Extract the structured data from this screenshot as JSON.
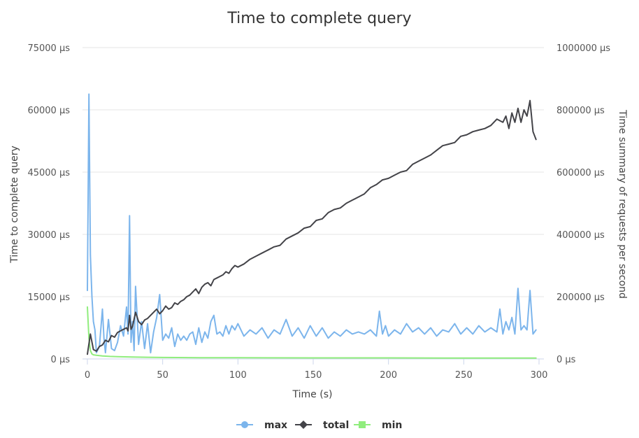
{
  "chart_data": {
    "type": "line",
    "title": "Time to complete query",
    "xlabel": "Time (s)",
    "ylabel_left": "Time to complete query",
    "ylabel_right": "Time summary of requests per second",
    "x_ticks": [
      "0",
      "50",
      "100",
      "150",
      "200",
      "250",
      "300"
    ],
    "y_left_ticks": [
      "0 µs",
      "15000 µs",
      "30000 µs",
      "45000 µs",
      "60000 µs",
      "75000 µs"
    ],
    "y_right_ticks": [
      "0 µs",
      "200000 µs",
      "400000 µs",
      "600000 µs",
      "800000 µs",
      "1000000 µs"
    ],
    "xlim": [
      0,
      300
    ],
    "ylim_left": [
      0,
      75000
    ],
    "ylim_right": [
      0,
      1000000
    ],
    "grid": true,
    "legend_position": "bottom-center",
    "series": [
      {
        "name": "max",
        "axis": "left",
        "color": "#7cb5ec",
        "marker": "circle",
        "x": [
          0,
          1,
          2,
          3,
          4,
          5,
          6,
          8,
          10,
          11,
          12,
          14,
          16,
          18,
          20,
          22,
          24,
          26,
          27,
          28,
          29,
          30,
          31,
          32,
          34,
          36,
          38,
          40,
          42,
          44,
          46,
          48,
          50,
          52,
          54,
          56,
          58,
          60,
          62,
          64,
          66,
          68,
          70,
          72,
          74,
          76,
          78,
          80,
          82,
          84,
          86,
          88,
          90,
          92,
          94,
          96,
          98,
          100,
          104,
          108,
          112,
          116,
          120,
          124,
          128,
          132,
          136,
          140,
          144,
          148,
          152,
          156,
          160,
          164,
          168,
          172,
          176,
          180,
          184,
          188,
          192,
          194,
          196,
          198,
          200,
          204,
          208,
          212,
          216,
          220,
          224,
          228,
          232,
          236,
          240,
          244,
          248,
          252,
          256,
          260,
          264,
          268,
          272,
          274,
          276,
          278,
          280,
          282,
          284,
          286,
          288,
          290,
          292,
          294,
          296,
          298
        ],
        "y": [
          16500,
          63800,
          25000,
          15000,
          9000,
          7000,
          1500,
          3000,
          12000,
          5000,
          1500,
          9500,
          2500,
          2000,
          4000,
          8000,
          5500,
          12500,
          6000,
          34500,
          4000,
          9000,
          2000,
          17500,
          3500,
          9000,
          2500,
          8500,
          1500,
          6500,
          10000,
          15500,
          4500,
          6000,
          5000,
          7500,
          3000,
          6000,
          4500,
          5500,
          4500,
          6000,
          6500,
          3500,
          7500,
          4000,
          6500,
          5000,
          9000,
          10500,
          6000,
          6500,
          5500,
          8000,
          6000,
          8000,
          7000,
          8500,
          5500,
          7000,
          6000,
          7500,
          5000,
          7000,
          6000,
          9500,
          5500,
          7500,
          5000,
          8000,
          5500,
          7500,
          5000,
          6500,
          5500,
          7000,
          6000,
          6500,
          6000,
          7000,
          5500,
          11500,
          6000,
          8000,
          5500,
          7000,
          6000,
          8500,
          6500,
          7500,
          6000,
          7500,
          5500,
          7000,
          6500,
          8500,
          6000,
          7500,
          6000,
          8000,
          6500,
          7500,
          6500,
          12000,
          6000,
          9000,
          7000,
          10000,
          6000,
          17000,
          7000,
          8000,
          7000,
          16500,
          6000,
          7000
        ]
      },
      {
        "name": "total",
        "axis": "right",
        "color": "#434348",
        "marker": "diamond",
        "x": [
          0,
          2,
          4,
          6,
          8,
          10,
          12,
          14,
          16,
          18,
          20,
          22,
          24,
          26,
          27,
          28,
          29,
          30,
          32,
          34,
          36,
          38,
          40,
          42,
          44,
          46,
          48,
          50,
          52,
          54,
          56,
          58,
          60,
          62,
          64,
          66,
          68,
          70,
          72,
          74,
          76,
          78,
          80,
          82,
          84,
          86,
          88,
          90,
          92,
          94,
          96,
          98,
          100,
          104,
          108,
          112,
          116,
          120,
          124,
          128,
          132,
          136,
          140,
          144,
          148,
          152,
          156,
          160,
          164,
          168,
          172,
          176,
          180,
          184,
          188,
          192,
          196,
          200,
          204,
          208,
          212,
          216,
          220,
          224,
          228,
          232,
          236,
          240,
          244,
          248,
          252,
          256,
          260,
          264,
          268,
          272,
          276,
          278,
          280,
          282,
          284,
          286,
          288,
          290,
          292,
          294,
          296,
          298
        ],
        "y": [
          15000,
          80000,
          30000,
          25000,
          40000,
          45000,
          60000,
          55000,
          75000,
          70000,
          85000,
          90000,
          95000,
          100000,
          90000,
          140000,
          95000,
          105000,
          150000,
          120000,
          110000,
          125000,
          130000,
          140000,
          150000,
          160000,
          145000,
          155000,
          170000,
          160000,
          165000,
          180000,
          175000,
          185000,
          190000,
          200000,
          205000,
          215000,
          225000,
          210000,
          230000,
          240000,
          245000,
          235000,
          255000,
          260000,
          265000,
          270000,
          280000,
          275000,
          290000,
          300000,
          295000,
          305000,
          320000,
          330000,
          340000,
          350000,
          360000,
          365000,
          385000,
          395000,
          405000,
          420000,
          425000,
          445000,
          450000,
          470000,
          480000,
          485000,
          500000,
          510000,
          520000,
          530000,
          550000,
          560000,
          575000,
          580000,
          590000,
          600000,
          605000,
          625000,
          635000,
          645000,
          655000,
          670000,
          685000,
          690000,
          695000,
          715000,
          720000,
          730000,
          735000,
          740000,
          750000,
          770000,
          760000,
          780000,
          740000,
          790000,
          760000,
          805000,
          760000,
          800000,
          780000,
          830000,
          730000,
          705000
        ]
      },
      {
        "name": "min",
        "axis": "left",
        "color": "#90ed7d",
        "marker": "square",
        "x": [
          0,
          1,
          2,
          3,
          4,
          6,
          8,
          10,
          15,
          20,
          25,
          30,
          40,
          50,
          75,
          100,
          150,
          200,
          250,
          298
        ],
        "y": [
          12500,
          5000,
          2000,
          1200,
          1000,
          900,
          800,
          700,
          600,
          550,
          500,
          450,
          400,
          350,
          300,
          300,
          250,
          250,
          200,
          200
        ]
      }
    ]
  }
}
